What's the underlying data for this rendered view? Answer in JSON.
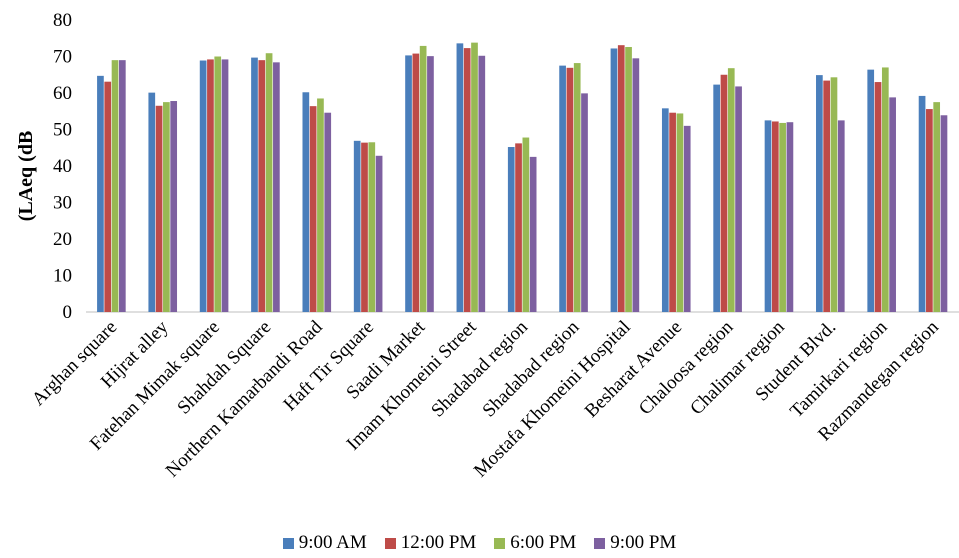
{
  "chart_data": {
    "type": "bar",
    "ylabel": "(LAeq (dB",
    "ylim": [
      0,
      80
    ],
    "yticks": [
      0,
      10,
      20,
      30,
      40,
      50,
      60,
      70,
      80
    ],
    "grid": false,
    "legend_position": "bottom",
    "categories": [
      "Arghan square",
      "Hijrat alley",
      "Fatehan Mimak square",
      "Shahdah Square",
      "Northern Kamarbandi Road",
      "Haft Tir Square",
      "Saadi Market",
      "Imam Khomeini Street",
      "Shadabad region",
      "Shadabad region",
      "Mostafa Khomeini Hospital",
      "Besharat Avenue",
      "Chaloosa region",
      "Chalimar region",
      "Student Blvd.",
      "Tamirkari region",
      "Razmandegan region"
    ],
    "series": [
      {
        "name": "9:00 AM",
        "color": "#4a7ebb",
        "values": [
          64.7,
          60.1,
          68.9,
          69.7,
          60.2,
          46.9,
          70.3,
          73.6,
          45.2,
          67.5,
          72.2,
          55.8,
          62.3,
          52.5,
          64.9,
          66.4,
          59.2
        ]
      },
      {
        "name": "12:00 PM",
        "color": "#be4b48",
        "values": [
          63.1,
          56.5,
          69.2,
          69.0,
          56.4,
          46.4,
          70.8,
          72.3,
          46.2,
          66.9,
          73.1,
          54.6,
          65.0,
          52.2,
          63.4,
          63.0,
          55.6
        ]
      },
      {
        "name": "6:00 PM",
        "color": "#98b954",
        "values": [
          69.0,
          57.5,
          70.0,
          70.9,
          58.5,
          46.5,
          72.9,
          73.8,
          47.8,
          68.2,
          72.6,
          54.4,
          66.8,
          51.8,
          64.3,
          67.0,
          57.5
        ]
      },
      {
        "name": "9:00 PM",
        "color": "#7d60a0",
        "values": [
          69.0,
          57.8,
          69.2,
          68.4,
          54.6,
          42.8,
          70.1,
          70.2,
          42.5,
          59.9,
          69.5,
          51.0,
          61.8,
          52.0,
          52.5,
          58.8,
          53.9
        ]
      }
    ]
  }
}
